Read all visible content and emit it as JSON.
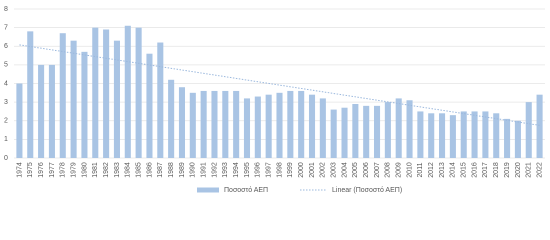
{
  "chart_data": {
    "type": "bar",
    "categories": [
      "1974",
      "1975",
      "1976",
      "1977",
      "1978",
      "1979",
      "1980",
      "1981",
      "1982",
      "1983",
      "1984",
      "1985",
      "1986",
      "1987",
      "1988",
      "1989",
      "1990",
      "1991",
      "1992",
      "1993",
      "1994",
      "1995",
      "1996",
      "1997",
      "1998",
      "1999",
      "2000",
      "2001",
      "2002",
      "2003",
      "2004",
      "2005",
      "2006",
      "2007",
      "2008",
      "2009",
      "2010",
      "2011",
      "2012",
      "2013",
      "2014",
      "2015",
      "2016",
      "2017",
      "2018",
      "2019",
      "2020",
      "2021",
      "2022"
    ],
    "series": [
      {
        "name": "Ποσοστό ΑΕΠ",
        "color": "#a9c4e4",
        "values": [
          4.0,
          6.8,
          5.0,
          5.0,
          6.7,
          6.3,
          5.7,
          7.0,
          6.9,
          6.3,
          7.1,
          7.0,
          5.6,
          6.2,
          4.2,
          3.8,
          3.5,
          3.6,
          3.6,
          3.6,
          3.6,
          3.2,
          3.3,
          3.4,
          3.5,
          3.6,
          3.6,
          3.4,
          3.2,
          2.6,
          2.7,
          2.9,
          2.8,
          2.8,
          3.0,
          3.2,
          3.1,
          2.5,
          2.4,
          2.4,
          2.3,
          2.5,
          2.5,
          2.5,
          2.4,
          2.1,
          2.0,
          3.0,
          3.4
        ]
      }
    ],
    "trendline": {
      "name": "Linear (Ποσοστό ΑΕΠ)",
      "type": "linear",
      "color": "#9bb8dd"
    },
    "ylim": [
      0,
      8
    ],
    "yticks": [
      0,
      1,
      2,
      3,
      4,
      5,
      6,
      7,
      8
    ],
    "grid": true
  }
}
